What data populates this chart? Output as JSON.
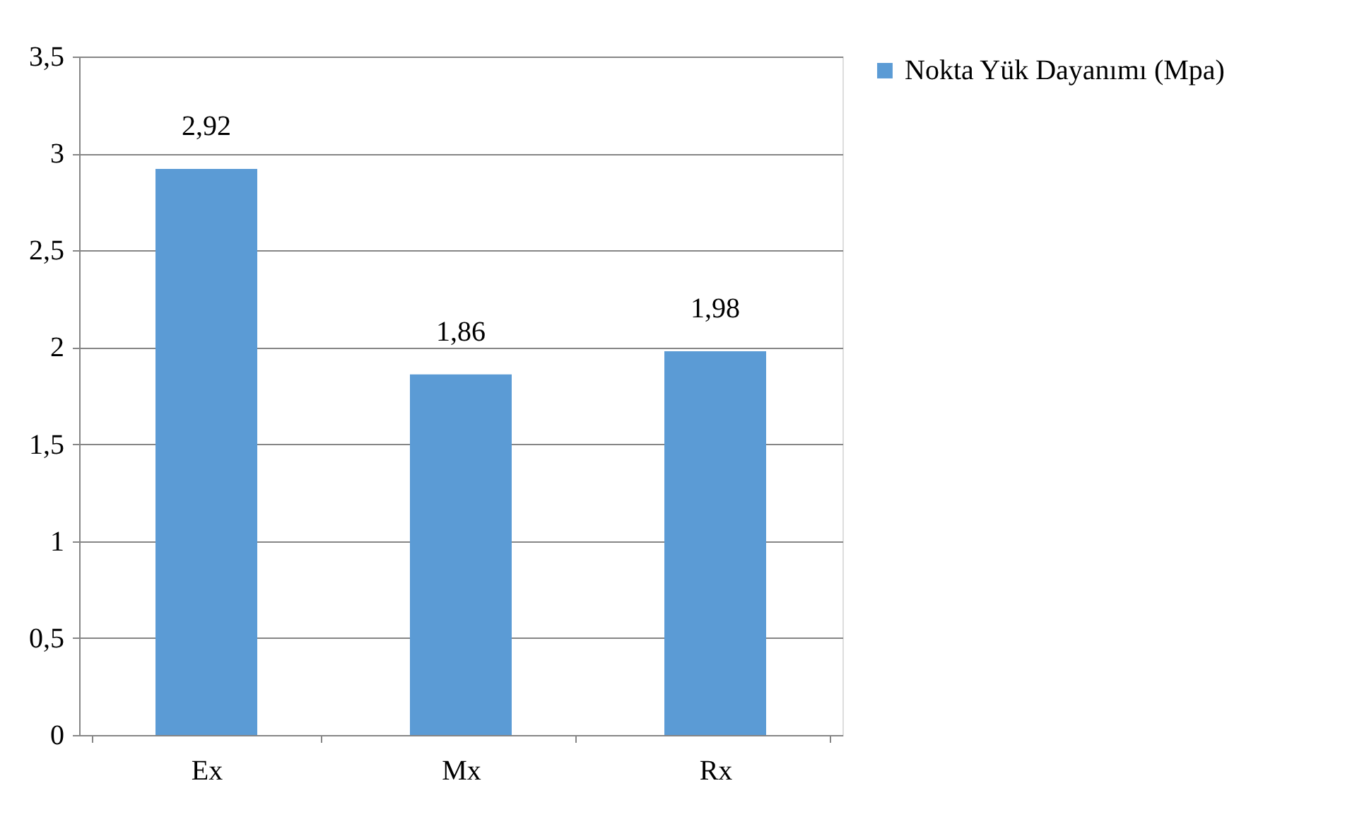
{
  "chart_data": {
    "type": "bar",
    "categories": [
      "Ex",
      "Mx",
      "Rx"
    ],
    "series": [
      {
        "name": "Nokta Yük Dayanımı (Mpa)",
        "color": "#5b9bd5",
        "values": [
          2.92,
          1.86,
          1.98
        ],
        "value_labels": [
          "2,92",
          "1,86",
          "1,98"
        ]
      }
    ],
    "ylim": [
      0,
      3.5
    ],
    "yticks": [
      0,
      {
        "value": 0.5,
        "label": "0,5"
      },
      1,
      {
        "value": 1.5,
        "label": "1,5"
      },
      2,
      {
        "value": 2.5,
        "label": "2,5"
      },
      3,
      {
        "value": 3.5,
        "label": "3,5"
      }
    ],
    "grid": "y",
    "legend": "right"
  }
}
